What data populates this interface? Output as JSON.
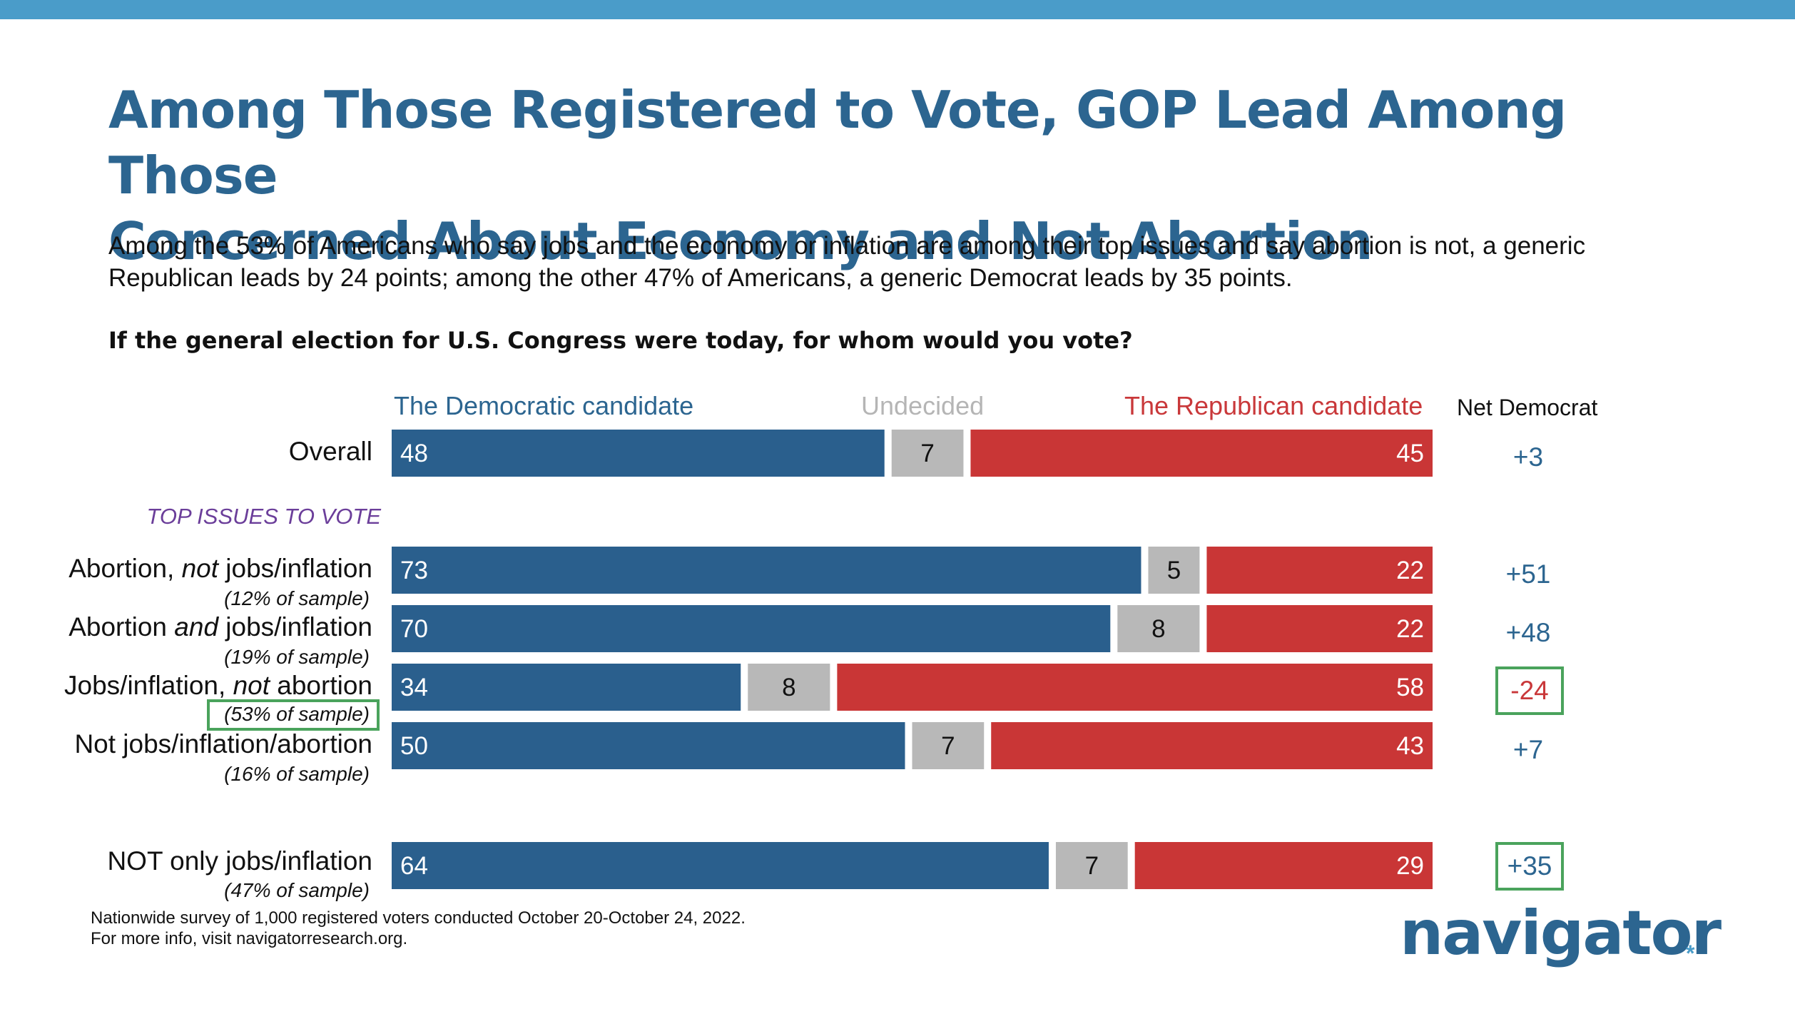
{
  "header": {
    "title_line1": "Among Those Registered to Vote, GOP Lead Among Those",
    "title_line2": "Concerned About Economy and Not Abortion",
    "subtitle_line1": "Among the 53% of Americans who say jobs and the economy or inflation are among their top issues and say abortion is not, a generic",
    "subtitle_line2": "Republican leads by 24 points; among the other 47% of Americans, a generic Democrat leads by 35 points.",
    "question": "If the general election for U.S. Congress were today, for whom would you vote?"
  },
  "columns": {
    "dem": "The Democratic candidate",
    "und": "Undecided",
    "rep": "The Republican candidate",
    "net": "Net Democrat"
  },
  "section_label": "TOP ISSUES TO VOTE",
  "rows": [
    {
      "label_a": "Overall",
      "label_b": "",
      "label_c": "",
      "sub": "",
      "net": "+3"
    },
    {
      "label_a": "Abortion, ",
      "label_b": "not",
      "label_c": " jobs/inflation",
      "sub": "(12% of sample)",
      "net": "+51"
    },
    {
      "label_a": "Abortion ",
      "label_b": "and",
      "label_c": " jobs/inflation",
      "sub": "(19% of sample)",
      "net": "+48"
    },
    {
      "label_a": "Jobs/inflation, ",
      "label_b": "not",
      "label_c": " abortion",
      "sub": "(53% of sample)",
      "net": "-24"
    },
    {
      "label_a": "Not jobs/inflation/abortion",
      "label_b": "",
      "label_c": "",
      "sub": "(16% of sample)",
      "net": "+7"
    },
    {
      "label_a": "NOT only jobs/inflation",
      "label_b": "",
      "label_c": "",
      "sub": "(47% of sample)",
      "net": "+35"
    }
  ],
  "colors": {
    "dem": "#2a5f8d",
    "und": "#b8b8b8",
    "rep": "#c93636",
    "net_pos": "#2c6590",
    "net_neg": "#c9383a",
    "highlight": "#4aa35c"
  },
  "chart_data": {
    "type": "bar",
    "orientation": "horizontal-stacked",
    "title": "If the general election for U.S. Congress were today, for whom would you vote?",
    "categories": [
      "Overall",
      "Abortion, not jobs/inflation",
      "Abortion and jobs/inflation",
      "Jobs/inflation, not abortion",
      "Not jobs/inflation/abortion",
      "NOT only jobs/inflation"
    ],
    "series": [
      {
        "name": "The Democratic candidate",
        "values": [
          48,
          73,
          70,
          34,
          50,
          64
        ]
      },
      {
        "name": "Undecided",
        "values": [
          7,
          5,
          8,
          8,
          7,
          7
        ]
      },
      {
        "name": "The Republican candidate",
        "values": [
          45,
          22,
          22,
          58,
          43,
          29
        ]
      }
    ],
    "net_democrat": [
      3,
      51,
      48,
      -24,
      7,
      35
    ],
    "xlim": [
      0,
      100
    ],
    "xlabel": "",
    "ylabel": ""
  },
  "footer": {
    "note_line1": "Nationwide survey of 1,000 registered voters conducted October 20-October 24, 2022.",
    "note_line2": "For more info, visit navigatorresearch.org.",
    "logo": "navigator",
    "logo_mark": "*"
  }
}
